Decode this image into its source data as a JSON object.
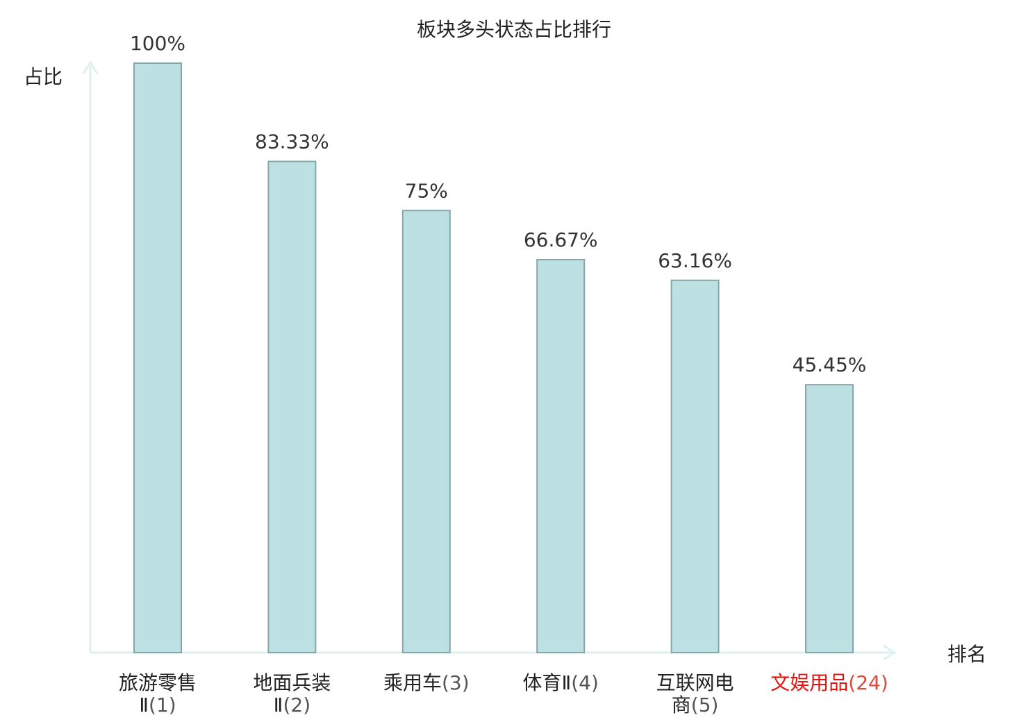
{
  "chart_data": {
    "type": "bar",
    "title": "板块多头状态占比排行",
    "ylabel": "占比",
    "xlabel": "排名",
    "ylim": [
      0,
      100
    ],
    "grid": false,
    "categories": [
      {
        "name_lines": [
          "旅游零售",
          "Ⅱ"
        ],
        "rank": "(1)",
        "highlight": false
      },
      {
        "name_lines": [
          "地面兵装",
          "Ⅱ"
        ],
        "rank": "(2)",
        "highlight": false
      },
      {
        "name_lines": [
          "乘用车"
        ],
        "rank": "(3)",
        "highlight": false
      },
      {
        "name_lines": [
          "体育Ⅱ"
        ],
        "rank": "(4)",
        "highlight": false
      },
      {
        "name_lines": [
          "互联网电",
          "商"
        ],
        "rank": "(5)",
        "highlight": false
      },
      {
        "name_lines": [
          "文娱用品"
        ],
        "rank": "(24)",
        "highlight": true
      }
    ],
    "values": [
      100,
      83.33,
      75,
      66.67,
      63.16,
      45.45
    ],
    "value_labels": [
      "100%",
      "83.33%",
      "75%",
      "66.67%",
      "63.16%",
      "45.45%"
    ]
  },
  "colors": {
    "bar_fill": "#bde0e3",
    "bar_stroke": "#86a7a9",
    "axis": "#dff1ef",
    "label_text": "#222222",
    "rank_text": "#555555",
    "highlight": "#e8120c",
    "highlight_rank": "#e04a3a"
  }
}
